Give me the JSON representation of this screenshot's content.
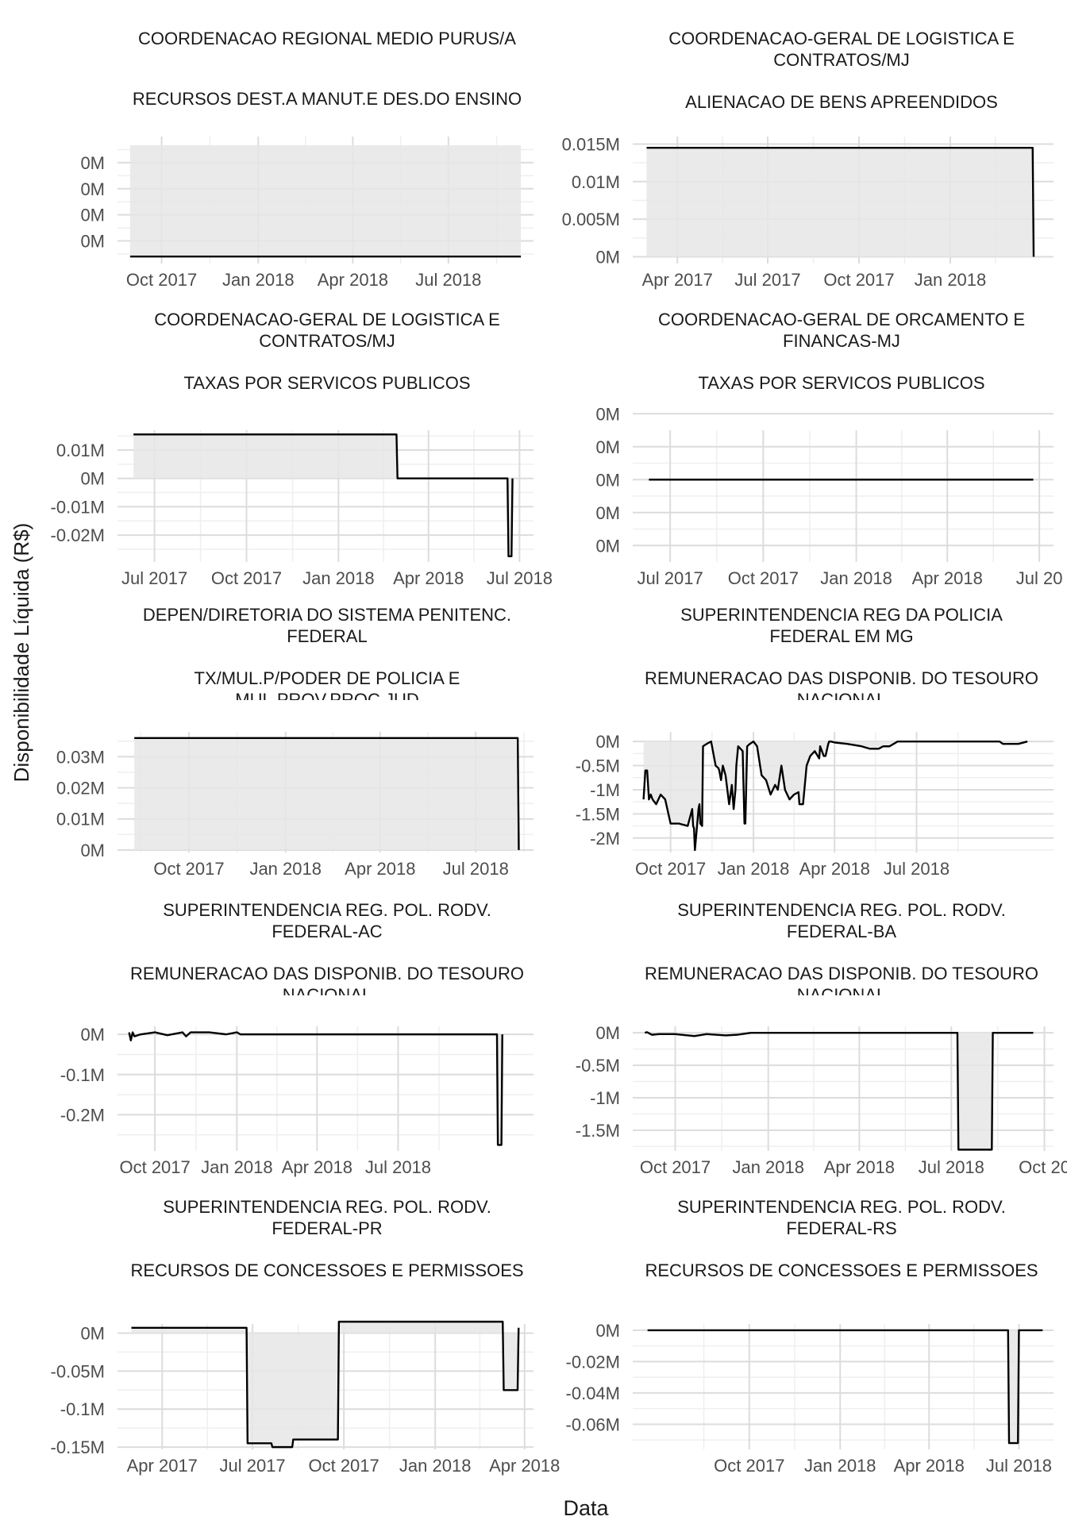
{
  "figure": {
    "xlabel": "Data",
    "ylabel": "Disponibilidade Líquida (R$)",
    "colors": {
      "line": "#000000",
      "fill": "#e6e6e6",
      "grid_major": "#dcdcdc",
      "grid_minor": "#efefef",
      "tick_text": "#4d4d4d",
      "title_text": "#1a1a1a"
    }
  },
  "chart_data": [
    {
      "type": "area",
      "title_line1": "COORDENACAO REGIONAL MEDIO PURUS/A",
      "title_line2": "RECURSOS DEST.A MANUT.E DES.DO ENSINO",
      "xlim": [
        "2017-08-20",
        "2018-09-20"
      ],
      "ylim": [
        -0.0013,
        0.006
      ],
      "x_ticks": [
        "2017-10-01",
        "2018-01-01",
        "2018-04-01",
        "2018-07-01"
      ],
      "x_tick_labels": [
        "Oct 2017",
        "Jan 2018",
        "Apr 2018",
        "Jul 2018"
      ],
      "y_ticks": [
        0.0,
        0.0015,
        0.003,
        0.0045
      ],
      "y_tick_labels": [
        "0M",
        "0M",
        "0M",
        "0M"
      ],
      "fill_top": 0.0055,
      "x": [
        "2017-09-01",
        "2018-09-08"
      ],
      "y": [
        -0.0009,
        -0.0009
      ]
    },
    {
      "type": "area",
      "title_line1": "COORDENACAO-GERAL DE LOGISTICA E CONTRATOS/MJ",
      "title_line2": "ALIENACAO DE BENS APREENDIDOS",
      "xlim": [
        "2017-02-15",
        "2018-04-15"
      ],
      "ylim": [
        -0.0009,
        0.016
      ],
      "x_ticks": [
        "2017-04-01",
        "2017-07-01",
        "2017-10-01",
        "2018-01-01"
      ],
      "x_tick_labels": [
        "Apr 2017",
        "Jul 2017",
        "Oct 2017",
        "Jan 2018"
      ],
      "y_ticks": [
        0,
        0.005,
        0.01,
        0.015
      ],
      "y_tick_labels": [
        "0M",
        "0.005M",
        "0.01M",
        "0.015M"
      ],
      "x": [
        "2017-03-01",
        "2018-03-25",
        "2018-03-26"
      ],
      "y": [
        0.0145,
        0.0145,
        0
      ]
    },
    {
      "type": "area",
      "title_line1": "COORDENACAO-GERAL DE LOGISTICA E CONTRATOS/MJ",
      "title_line2": "TAXAS POR SERVICOS PUBLICOS",
      "xlim": [
        "2017-05-25",
        "2018-07-15"
      ],
      "ylim": [
        -0.0295,
        0.017
      ],
      "x_ticks": [
        "2017-07-01",
        "2017-10-01",
        "2018-01-01",
        "2018-04-01",
        "2018-07-01"
      ],
      "x_tick_labels": [
        "Jul 2017",
        "Oct 2017",
        "Jan 2018",
        "Apr 2018",
        "Jul 2018"
      ],
      "y_ticks": [
        -0.02,
        -0.01,
        0,
        0.01
      ],
      "y_tick_labels": [
        "-0.02M",
        "-0.01M",
        "0M",
        "0.01M"
      ],
      "x": [
        "2017-06-10",
        "2018-02-28",
        "2018-03-01",
        "2018-06-19",
        "2018-06-20",
        "2018-06-23",
        "2018-06-24"
      ],
      "y": [
        0.0155,
        0.0155,
        0,
        0,
        -0.0275,
        -0.0275,
        0
      ]
    },
    {
      "type": "area",
      "title_line1": "COORDENACAO-GERAL DE ORCAMENTO E FINANCAS-MJ",
      "title_line2": "TAXAS POR SERVICOS PUBLICOS",
      "xlim": [
        "2017-05-25",
        "2018-07-15"
      ],
      "ylim": [
        -0.00025,
        0.00015
      ],
      "x_ticks": [
        "2017-07-01",
        "2017-10-01",
        "2018-01-01",
        "2018-04-01",
        "2018-07-01"
      ],
      "x_tick_labels": [
        "Jul 2017",
        "Oct 2017",
        "Jan 2018",
        "Apr 2018",
        "Jul 20"
      ],
      "y_ticks": [
        -0.0002,
        -0.0001,
        0,
        0.0001,
        0.0002
      ],
      "y_tick_labels": [
        "0M",
        "0M",
        "0M",
        "0M",
        "0M"
      ],
      "x": [
        "2017-06-10",
        "2018-06-25"
      ],
      "y": [
        0,
        0
      ]
    },
    {
      "type": "area",
      "title_line1": "DEPEN/DIRETORIA DO SISTEMA PENITENC. FEDERAL",
      "title_line2": "TX/MUL.P/PODER DE POLICIA E MUL.PROV.PROC.JUD",
      "xlim": [
        "2017-07-25",
        "2018-08-25"
      ],
      "ylim": [
        -0.0008,
        0.038
      ],
      "x_ticks": [
        "2017-10-01",
        "2018-01-01",
        "2018-04-01",
        "2018-07-01"
      ],
      "x_tick_labels": [
        "Oct 2017",
        "Jan 2018",
        "Apr 2018",
        "Jul 2018"
      ],
      "y_ticks": [
        0,
        0.01,
        0.02,
        0.03
      ],
      "y_tick_labels": [
        "0M",
        "0.01M",
        "0.02M",
        "0.03M"
      ],
      "x": [
        "2017-08-10",
        "2018-08-10",
        "2018-08-11"
      ],
      "y": [
        0.036,
        0.036,
        0
      ]
    },
    {
      "type": "area",
      "title_line1": "SUPERINTENDENCIA REG DA POLICIA FEDERAL EM MG",
      "title_line2": "REMUNERACAO DAS DISPONIB. DO TESOURO NACIONAL",
      "xlim": [
        "2017-08-20",
        "2018-11-30"
      ],
      "ylim": [
        -2.3,
        0.2
      ],
      "x_ticks": [
        "2017-10-01",
        "2018-01-01",
        "2018-04-01",
        "2018-07-01"
      ],
      "x_tick_labels": [
        "Oct 2017",
        "Jan 2018",
        "Apr 2018",
        "Jul 2018"
      ],
      "y_ticks": [
        -2,
        -1.5,
        -1,
        -0.5,
        0
      ],
      "y_tick_labels": [
        "-2M",
        "-1.5M",
        "-1M",
        "-0.5M",
        "0M"
      ],
      "x": [
        "2017-09-01",
        "2017-09-03",
        "2017-09-05",
        "2017-09-07",
        "2017-09-09",
        "2017-09-11",
        "2017-09-15",
        "2017-09-20",
        "2017-09-25",
        "2017-10-01",
        "2017-10-10",
        "2017-10-20",
        "2017-10-25",
        "2017-10-26",
        "2017-10-27",
        "2017-10-28",
        "2017-11-01",
        "2017-11-02",
        "2017-11-03",
        "2017-11-05",
        "2017-11-06",
        "2017-11-10",
        "2017-11-15",
        "2017-11-18",
        "2017-11-20",
        "2017-11-23",
        "2017-11-24",
        "2017-11-26",
        "2017-11-28",
        "2017-12-01",
        "2017-12-05",
        "2017-12-08",
        "2017-12-10",
        "2017-12-12",
        "2017-12-13",
        "2017-12-15",
        "2017-12-20",
        "2017-12-22",
        "2017-12-23",
        "2017-12-25",
        "2017-12-28",
        "2018-01-01",
        "2018-01-05",
        "2018-01-10",
        "2018-01-15",
        "2018-01-20",
        "2018-01-25",
        "2018-01-28",
        "2018-02-01",
        "2018-02-05",
        "2018-02-10",
        "2018-02-15",
        "2018-02-20",
        "2018-02-21",
        "2018-02-25",
        "2018-03-01",
        "2018-03-05",
        "2018-03-10",
        "2018-03-15",
        "2018-03-16",
        "2018-03-20",
        "2018-03-22",
        "2018-03-25",
        "2018-03-26",
        "2018-03-28",
        "2018-04-01",
        "2018-04-15",
        "2018-05-01",
        "2018-05-10",
        "2018-05-20",
        "2018-05-25",
        "2018-06-01",
        "2018-06-10",
        "2018-07-01",
        "2018-08-01",
        "2018-10-01",
        "2018-10-05",
        "2018-10-22",
        "2018-11-01"
      ],
      "y": [
        -1.2,
        -0.6,
        -0.6,
        -1.2,
        -1.1,
        -1.2,
        -1.3,
        -1.1,
        -1.2,
        -1.7,
        -1.7,
        -1.75,
        -1.4,
        -1.75,
        -1.8,
        -2.25,
        -1.4,
        -1.3,
        -1.7,
        -1.75,
        -0.1,
        -0.05,
        0,
        -0.3,
        -0.5,
        -0.55,
        -0.6,
        -0.8,
        -0.5,
        -0.7,
        -1.3,
        -0.9,
        -1.4,
        -1.0,
        -0.5,
        -0.1,
        -0.2,
        -1.7,
        -1.7,
        -0.1,
        -0.05,
        0,
        -0.1,
        -0.7,
        -0.8,
        -1.1,
        -0.9,
        -1.0,
        -0.5,
        -1.0,
        -1.2,
        -1.1,
        -1.05,
        -1.3,
        -1.3,
        -0.5,
        -0.3,
        -0.2,
        -0.35,
        -0.1,
        -0.3,
        -0.3,
        -0.05,
        0,
        0,
        -0.02,
        -0.05,
        -0.1,
        -0.15,
        -0.15,
        -0.1,
        -0.1,
        0,
        0,
        0,
        0,
        -0.05,
        -0.05,
        0
      ]
    },
    {
      "type": "area",
      "title_line1": "SUPERINTENDENCIA REG. POL. RODV. FEDERAL-AC",
      "title_line2": "REMUNERACAO DAS DISPONIB. DO TESOURO NACIONAL",
      "xlim": [
        "2017-08-20",
        "2018-11-30"
      ],
      "ylim": [
        -0.29,
        0.02
      ],
      "x_ticks": [
        "2017-10-01",
        "2018-01-01",
        "2018-04-01",
        "2018-07-01"
      ],
      "x_tick_labels": [
        "Oct 2017",
        "Jan 2018",
        "Apr 2018",
        "Jul 2018"
      ],
      "y_ticks": [
        -0.2,
        -0.1,
        0
      ],
      "y_tick_labels": [
        "-0.2M",
        "-0.1M",
        "0M"
      ],
      "x": [
        "2017-09-02",
        "2017-09-04",
        "2017-09-06",
        "2017-09-08",
        "2017-09-15",
        "2017-10-01",
        "2017-10-15",
        "2017-11-01",
        "2017-11-05",
        "2017-11-10",
        "2017-12-01",
        "2017-12-20",
        "2018-01-01",
        "2018-01-05",
        "2018-02-01",
        "2018-10-20",
        "2018-10-21",
        "2018-10-25",
        "2018-10-26"
      ],
      "y": [
        0.005,
        -0.015,
        0.005,
        -0.005,
        0,
        0.005,
        -0.002,
        0.005,
        -0.005,
        0.005,
        0.005,
        0,
        0.005,
        0,
        0,
        0,
        -0.275,
        -0.275,
        0
      ]
    },
    {
      "type": "area",
      "title_line1": "SUPERINTENDENCIA REG. POL. RODV. FEDERAL-BA",
      "title_line2": "REMUNERACAO DAS DISPONIB. DO TESOURO NACIONAL",
      "xlim": [
        "2017-08-20",
        "2018-10-10"
      ],
      "ylim": [
        -1.82,
        0.1
      ],
      "x_ticks": [
        "2017-10-01",
        "2018-01-01",
        "2018-04-01",
        "2018-07-01",
        "2018-10-01"
      ],
      "x_tick_labels": [
        "Oct 2017",
        "Jan 2018",
        "Apr 2018",
        "Jul 2018",
        "Oct 20"
      ],
      "y_ticks": [
        -1.5,
        -1,
        -0.5,
        0
      ],
      "y_tick_labels": [
        "-1.5M",
        "-1M",
        "-0.5M",
        "0M"
      ],
      "x": [
        "2017-09-01",
        "2017-09-03",
        "2017-09-08",
        "2017-09-15",
        "2017-10-01",
        "2017-10-20",
        "2017-11-01",
        "2017-11-20",
        "2017-12-01",
        "2017-12-15",
        "2018-01-01",
        "2018-02-01",
        "2018-03-01",
        "2018-07-07",
        "2018-07-08",
        "2018-08-10",
        "2018-08-11",
        "2018-09-20"
      ],
      "y": [
        0,
        0.01,
        -0.03,
        -0.02,
        -0.02,
        -0.05,
        -0.02,
        -0.04,
        -0.03,
        0,
        0,
        0,
        0,
        0,
        -1.8,
        -1.8,
        0,
        0
      ]
    },
    {
      "type": "area",
      "title_line1": "SUPERINTENDENCIA REG. POL. RODV. FEDERAL-PR",
      "title_line2": "RECURSOS DE CONCESSOES E PERMISSOES",
      "xlim": [
        "2017-02-15",
        "2018-04-10"
      ],
      "ylim": [
        -0.153,
        0.012
      ],
      "x_ticks": [
        "2017-04-01",
        "2017-07-01",
        "2017-10-01",
        "2018-01-01",
        "2018-04-01"
      ],
      "x_tick_labels": [
        "Apr 2017",
        "Jul 2017",
        "Oct 2017",
        "Jan 2018",
        "Apr 2018"
      ],
      "y_ticks": [
        -0.15,
        -0.1,
        -0.05,
        0
      ],
      "y_tick_labels": [
        "-0.15M",
        "-0.1M",
        "-0.05M",
        "0M"
      ],
      "x": [
        "2017-03-01",
        "2017-06-25",
        "2017-06-26",
        "2017-07-20",
        "2017-07-21",
        "2017-08-10",
        "2017-08-11",
        "2017-09-25",
        "2017-09-26",
        "2018-03-10",
        "2018-03-11",
        "2018-03-25",
        "2018-03-26"
      ],
      "y": [
        0.007,
        0.007,
        -0.145,
        -0.145,
        -0.15,
        -0.15,
        -0.14,
        -0.14,
        0.015,
        0.015,
        -0.075,
        -0.075,
        0.007
      ]
    },
    {
      "type": "area",
      "title_line1": "SUPERINTENDENCIA REG. POL. RODV. FEDERAL-RS",
      "title_line2": "RECURSOS DE CONCESSOES E PERMISSOES",
      "xlim": [
        "2017-06-05",
        "2018-08-05"
      ],
      "ylim": [
        -0.076,
        0.004
      ],
      "x_ticks": [
        "2017-10-01",
        "2018-01-01",
        "2018-04-01",
        "2018-07-01"
      ],
      "x_tick_labels": [
        "Oct 2017",
        "Jan 2018",
        "Apr 2018",
        "Jul 2018"
      ],
      "y_ticks": [
        -0.06,
        -0.04,
        -0.02,
        0
      ],
      "y_tick_labels": [
        "-0.06M",
        "-0.04M",
        "-0.02M",
        "0M"
      ],
      "x": [
        "2017-06-20",
        "2018-06-20",
        "2018-06-21",
        "2018-06-30",
        "2018-07-01",
        "2018-07-25"
      ],
      "y": [
        0,
        0,
        -0.072,
        -0.072,
        0,
        0
      ]
    }
  ]
}
